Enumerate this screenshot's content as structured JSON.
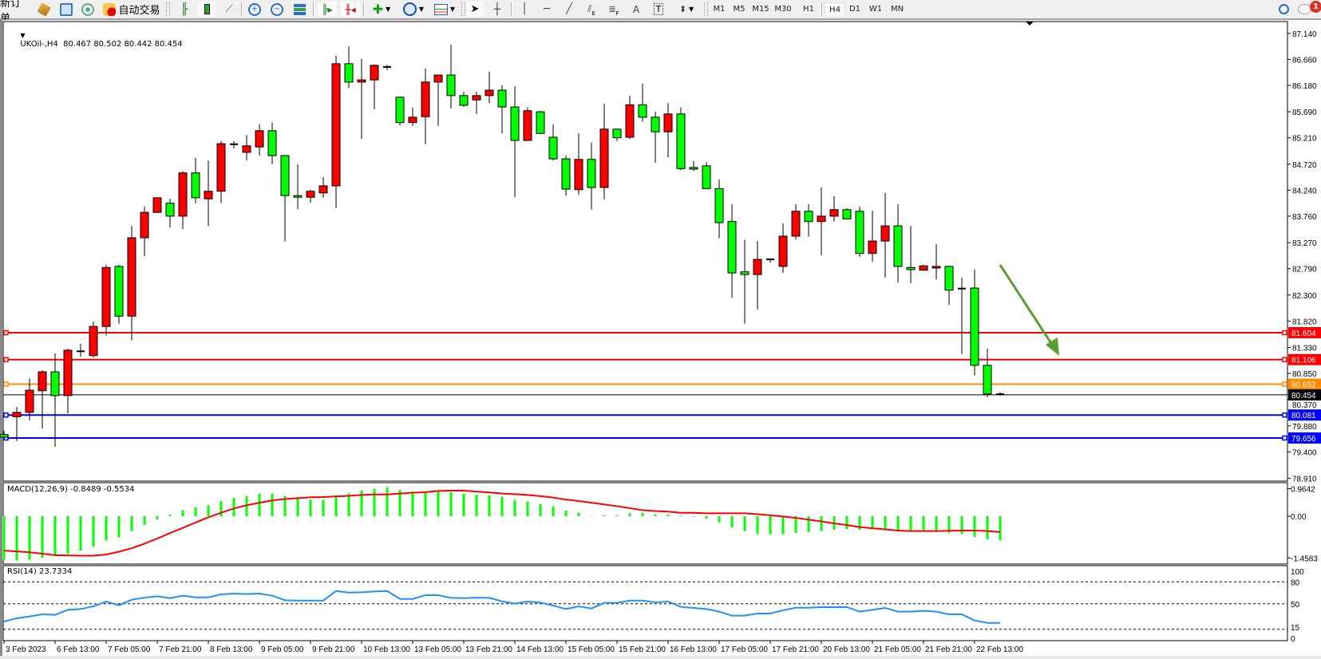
{
  "toolbar": {
    "new_order": "新订单",
    "auto_trading": "自动交易",
    "timeframes": [
      "M1",
      "M5",
      "M15",
      "M30",
      "H1",
      "H4",
      "D1",
      "W1",
      "MN"
    ],
    "active_timeframe": "H4",
    "notification_count": "1",
    "text_tool": "A",
    "label_tool": "T",
    "fibo_sub": "F",
    "channel_sub": "E"
  },
  "chart": {
    "header": "UKOil-,H4  80.467 80.502 80.442 80.454",
    "macd_label": "MACD(12,26,9) -0.8489 -0.5534",
    "rsi_label": "RSI(14) 23.7334",
    "arrow_color": "#5a9e32"
  },
  "chart_data": [
    {
      "type": "candlestick",
      "symbol": "UKOil-",
      "timeframe": "H4",
      "bull_color": "#ff0000",
      "bear_color": "#00ff00",
      "ohlc_fields": [
        "open",
        "high",
        "low",
        "close"
      ],
      "ylim": [
        78.91,
        87.14
      ],
      "y_ticks": [
        "87.140",
        "86.660",
        "86.180",
        "85.690",
        "85.210",
        "84.720",
        "84.240",
        "83.760",
        "83.270",
        "82.790",
        "82.300",
        "81.820",
        "81.330",
        "80.850",
        "80.370",
        "79.880",
        "79.400",
        "78.910"
      ],
      "x_tick_labels": [
        "3 Feb 2023",
        "6 Feb 13:00",
        "7 Feb 05:00",
        "7 Feb 21:00",
        "8 Feb 13:00",
        "9 Feb 05:00",
        "9 Feb 21:00",
        "10 Feb 13:00",
        "13 Feb 05:00",
        "13 Feb 21:00",
        "14 Feb 13:00",
        "15 Feb 05:00",
        "15 Feb 21:00",
        "16 Feb 13:00",
        "17 Feb 05:00",
        "17 Feb 21:00",
        "20 Feb 13:00",
        "21 Feb 05:00",
        "21 Feb 21:00",
        "22 Feb 13:00"
      ],
      "x_tick_every_bars": 4,
      "bid": {
        "price": 80.454,
        "label": "80.454",
        "color": "#000000"
      },
      "levels": [
        {
          "price": 81.604,
          "label": "81.604",
          "color": "#ff0000"
        },
        {
          "price": 81.106,
          "label": "81.106",
          "color": "#ff0000"
        },
        {
          "price": 80.652,
          "label": "80.652",
          "color": "#ff8c00"
        },
        {
          "price": 80.081,
          "label": "80.081",
          "color": "#0000ff"
        },
        {
          "price": 79.656,
          "label": "79.656",
          "color": "#0000ff"
        }
      ],
      "candles": [
        [
          79.72,
          79.79,
          79.66,
          79.67
        ],
        [
          80.05,
          80.23,
          79.6,
          80.13
        ],
        [
          80.13,
          80.76,
          79.98,
          80.54
        ],
        [
          80.53,
          80.91,
          79.83,
          80.88
        ],
        [
          80.88,
          81.22,
          79.49,
          80.44
        ],
        [
          80.44,
          81.31,
          80.11,
          81.28
        ],
        [
          81.26,
          81.4,
          81.16,
          81.26
        ],
        [
          81.18,
          81.81,
          81.15,
          81.72
        ],
        [
          81.72,
          82.86,
          81.55,
          82.81
        ],
        [
          82.83,
          82.86,
          81.77,
          81.91
        ],
        [
          81.91,
          83.58,
          81.46,
          83.36
        ],
        [
          83.36,
          83.94,
          83.02,
          83.83
        ],
        [
          83.83,
          84.1,
          83.82,
          84.1
        ],
        [
          84.0,
          84.08,
          83.55,
          83.76
        ],
        [
          83.76,
          84.59,
          83.52,
          84.56
        ],
        [
          84.56,
          84.84,
          84.0,
          84.1
        ],
        [
          84.08,
          84.79,
          83.58,
          84.22
        ],
        [
          84.22,
          85.15,
          84.0,
          85.1
        ],
        [
          85.09,
          85.15,
          85.01,
          85.09
        ],
        [
          84.94,
          85.26,
          84.79,
          85.06
        ],
        [
          85.04,
          85.46,
          84.88,
          85.34
        ],
        [
          85.34,
          85.49,
          84.72,
          84.88
        ],
        [
          84.88,
          84.88,
          83.29,
          84.14
        ],
        [
          84.14,
          84.72,
          83.89,
          84.11
        ],
        [
          84.11,
          84.25,
          84.01,
          84.22
        ],
        [
          84.19,
          84.48,
          84.1,
          84.32
        ],
        [
          84.32,
          86.73,
          83.91,
          86.58
        ],
        [
          86.58,
          86.9,
          86.13,
          86.24
        ],
        [
          86.24,
          86.67,
          85.19,
          86.28
        ],
        [
          86.28,
          86.56,
          85.74,
          86.55
        ],
        [
          86.52,
          86.56,
          86.46,
          86.52
        ],
        [
          85.96,
          85.96,
          85.44,
          85.49
        ],
        [
          85.49,
          85.77,
          85.43,
          85.59
        ],
        [
          85.6,
          86.49,
          85.09,
          86.24
        ],
        [
          86.24,
          86.37,
          85.43,
          86.37
        ],
        [
          86.37,
          86.93,
          85.75,
          85.99
        ],
        [
          85.99,
          86.06,
          85.78,
          85.81
        ],
        [
          85.91,
          86.06,
          85.65,
          85.99
        ],
        [
          85.99,
          86.43,
          85.85,
          86.09
        ],
        [
          86.09,
          86.18,
          85.29,
          85.78
        ],
        [
          85.78,
          86.16,
          84.11,
          85.16
        ],
        [
          85.16,
          85.77,
          85.15,
          85.71
        ],
        [
          85.69,
          85.71,
          85.28,
          85.29
        ],
        [
          85.22,
          85.46,
          84.79,
          84.82
        ],
        [
          84.82,
          84.88,
          84.14,
          84.26
        ],
        [
          84.25,
          85.29,
          84.16,
          84.81
        ],
        [
          84.81,
          85.12,
          83.88,
          84.29
        ],
        [
          84.29,
          85.84,
          84.07,
          85.37
        ],
        [
          85.37,
          85.37,
          85.15,
          85.21
        ],
        [
          85.22,
          85.99,
          85.19,
          85.82
        ],
        [
          85.82,
          86.21,
          85.51,
          85.59
        ],
        [
          85.59,
          85.69,
          84.75,
          85.32
        ],
        [
          85.32,
          85.85,
          84.85,
          85.65
        ],
        [
          85.65,
          85.77,
          84.61,
          84.64
        ],
        [
          84.66,
          84.78,
          84.6,
          84.63
        ],
        [
          84.69,
          84.76,
          84.26,
          84.27
        ],
        [
          84.27,
          84.44,
          83.35,
          83.64
        ],
        [
          83.66,
          83.98,
          82.25,
          82.71
        ],
        [
          82.73,
          83.32,
          81.77,
          82.68
        ],
        [
          82.68,
          83.3,
          82.03,
          82.96
        ],
        [
          82.96,
          82.96,
          82.9,
          82.96
        ],
        [
          82.83,
          83.63,
          82.71,
          83.39
        ],
        [
          83.39,
          83.98,
          83.33,
          83.85
        ],
        [
          83.85,
          83.98,
          83.38,
          83.66
        ],
        [
          83.66,
          84.29,
          83.04,
          83.76
        ],
        [
          83.76,
          84.13,
          83.66,
          83.88
        ],
        [
          83.88,
          83.91,
          83.71,
          83.71
        ],
        [
          83.85,
          83.94,
          83.01,
          83.07
        ],
        [
          83.07,
          83.86,
          82.92,
          83.3
        ],
        [
          83.3,
          84.19,
          82.62,
          83.58
        ],
        [
          83.58,
          83.98,
          82.53,
          82.83
        ],
        [
          82.81,
          83.58,
          82.52,
          82.77
        ],
        [
          82.76,
          82.86,
          82.76,
          82.84
        ],
        [
          82.8,
          83.24,
          82.59,
          82.83
        ],
        [
          82.83,
          82.84,
          82.12,
          82.39
        ],
        [
          82.42,
          82.62,
          81.21,
          82.42
        ],
        [
          82.43,
          82.77,
          80.81,
          81.0
        ],
        [
          81.0,
          81.31,
          80.41,
          80.47
        ],
        [
          80.467,
          80.502,
          80.442,
          80.454
        ]
      ]
    },
    {
      "type": "bar",
      "indicator": "MACD(12,26,9)",
      "y_ticks": [
        "0.9642",
        "0.00",
        "-1.4583"
      ],
      "histogram_color": "#00ff00",
      "signal_color": "#ff0000",
      "macd": [
        -1.52,
        -1.55,
        -1.52,
        -1.45,
        -1.38,
        -1.31,
        -1.2,
        -1.06,
        -0.84,
        -0.74,
        -0.52,
        -0.3,
        -0.11,
        0.05,
        0.21,
        0.31,
        0.38,
        0.53,
        0.64,
        0.7,
        0.78,
        0.78,
        0.7,
        0.63,
        0.58,
        0.57,
        0.73,
        0.8,
        0.89,
        0.96,
        1.0,
        0.92,
        0.86,
        0.84,
        0.86,
        0.84,
        0.79,
        0.75,
        0.73,
        0.68,
        0.57,
        0.51,
        0.42,
        0.34,
        0.2,
        0.12,
        -0.01,
        0.03,
        0.03,
        0.1,
        0.12,
        0.06,
        0.05,
        0.02,
        -0.02,
        -0.08,
        -0.22,
        -0.39,
        -0.52,
        -0.62,
        -0.63,
        -0.63,
        -0.58,
        -0.55,
        -0.52,
        -0.47,
        -0.45,
        -0.47,
        -0.45,
        -0.47,
        -0.52,
        -0.52,
        -0.52,
        -0.55,
        -0.58,
        -0.62,
        -0.72,
        -0.8,
        -0.8489
      ],
      "signal": [
        -1.2,
        -1.23,
        -1.26,
        -1.31,
        -1.36,
        -1.37,
        -1.38,
        -1.38,
        -1.34,
        -1.24,
        -1.12,
        -0.96,
        -0.78,
        -0.59,
        -0.41,
        -0.22,
        -0.04,
        0.12,
        0.27,
        0.38,
        0.47,
        0.55,
        0.6,
        0.63,
        0.66,
        0.67,
        0.69,
        0.71,
        0.74,
        0.76,
        0.76,
        0.79,
        0.82,
        0.84,
        0.88,
        0.89,
        0.89,
        0.86,
        0.83,
        0.79,
        0.77,
        0.74,
        0.7,
        0.65,
        0.58,
        0.53,
        0.47,
        0.41,
        0.35,
        0.28,
        0.21,
        0.18,
        0.16,
        0.12,
        0.12,
        0.1,
        0.1,
        0.1,
        0.1,
        0.07,
        0.03,
        -0.01,
        -0.06,
        -0.12,
        -0.18,
        -0.25,
        -0.31,
        -0.38,
        -0.42,
        -0.46,
        -0.5,
        -0.52,
        -0.52,
        -0.52,
        -0.51,
        -0.5,
        -0.5,
        -0.52,
        -0.5534
      ]
    },
    {
      "type": "line",
      "indicator": "RSI(14)",
      "ylim": [
        0,
        100
      ],
      "y_ticks": [
        "100",
        "80",
        "50",
        "15",
        "0"
      ],
      "levels": [
        80,
        50,
        15
      ],
      "color": "#1e90ff",
      "values": [
        25.7,
        30.1,
        32.6,
        35.5,
        34.8,
        41.7,
        42.8,
        46.4,
        53.0,
        47.9,
        55.5,
        58.4,
        60.3,
        57.7,
        61.0,
        58.8,
        58.8,
        62.8,
        63.9,
        63.2,
        63.9,
        61.0,
        54.8,
        54.4,
        54.4,
        54.4,
        67.5,
        65.3,
        65.7,
        66.8,
        67.5,
        56.6,
        56.6,
        61.7,
        61.7,
        58.0,
        57.7,
        58.4,
        58.0,
        53.3,
        50.1,
        53.0,
        51.6,
        47.5,
        42.8,
        46.4,
        43.5,
        51.2,
        51.2,
        54.4,
        54.4,
        51.9,
        53.0,
        45.7,
        44.3,
        42.8,
        39.2,
        33.7,
        33.7,
        36.6,
        36.6,
        41.0,
        44.6,
        44.6,
        45.4,
        45.4,
        45.4,
        39.2,
        41.7,
        44.3,
        39.2,
        39.2,
        40.3,
        39.2,
        35.5,
        35.5,
        27.1,
        23.8,
        23.7334
      ]
    }
  ]
}
